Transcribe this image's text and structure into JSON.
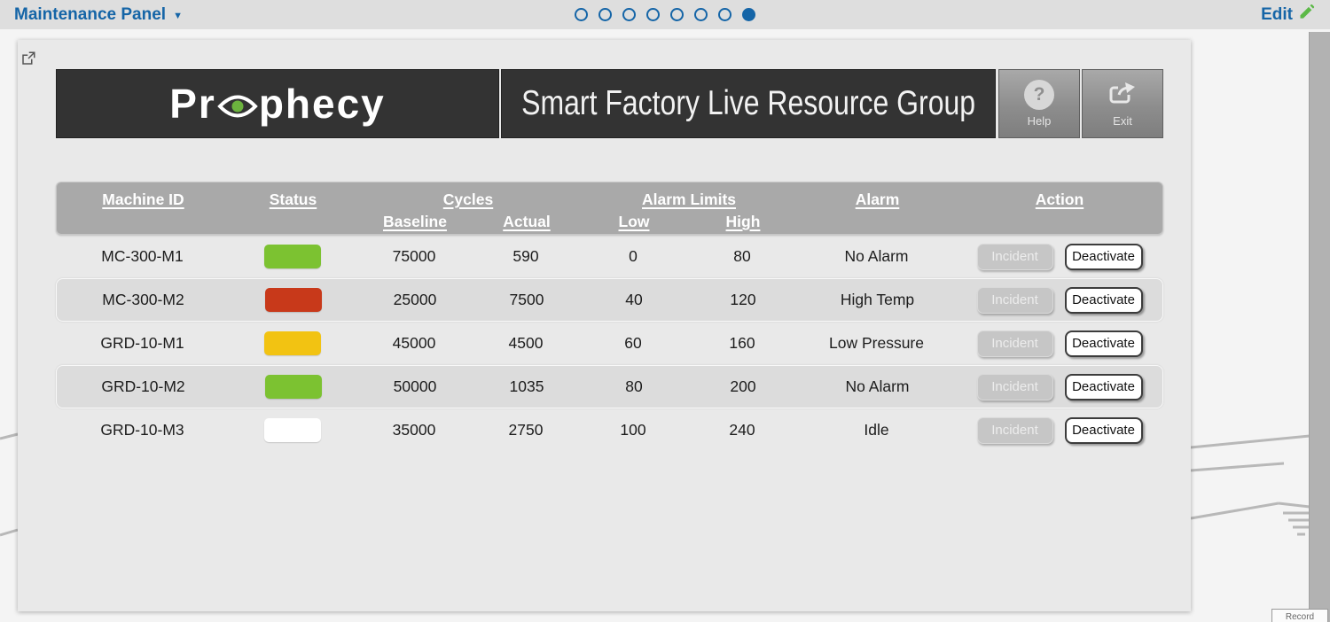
{
  "topbar": {
    "menu_label": "Maintenance Panel",
    "edit_label": "Edit",
    "page_dots": {
      "total": 8,
      "active_index": 7
    },
    "accent_color": "#1565a7",
    "pencil_color": "#5cb947"
  },
  "panel": {
    "logo_text": "Prophecy",
    "logo_text_left": "Pr",
    "logo_text_right": "phecy",
    "logo_eye_color": "#6cb33e",
    "title": "Smart Factory Live Resource Group",
    "help_label": "Help",
    "exit_label": "Exit"
  },
  "table": {
    "headers": {
      "machine_id": "Machine ID",
      "status": "Status",
      "cycles": "Cycles",
      "baseline": "Baseline",
      "actual": "Actual",
      "alarm_limits": "Alarm Limits",
      "low": "Low",
      "high": "High",
      "alarm": "Alarm",
      "action": "Action"
    },
    "action_buttons": {
      "incident": "Incident",
      "deactivate": "Deactivate"
    },
    "status_colors": {
      "running_green": "#7cc231",
      "alarm_red": "#c8391a",
      "warning_yellow": "#f2c312",
      "idle_white": "#ffffff"
    },
    "rows": [
      {
        "machine_id": "MC-300-M1",
        "status_color": "#7cc231",
        "baseline": "75000",
        "actual": "590",
        "low": "0",
        "high": "80",
        "alarm": "No Alarm"
      },
      {
        "machine_id": "MC-300-M2",
        "status_color": "#c8391a",
        "baseline": "25000",
        "actual": "7500",
        "low": "40",
        "high": "120",
        "alarm": "High Temp"
      },
      {
        "machine_id": "GRD-10-M1",
        "status_color": "#f2c312",
        "baseline": "45000",
        "actual": "4500",
        "low": "60",
        "high": "160",
        "alarm": "Low Pressure"
      },
      {
        "machine_id": "GRD-10-M2",
        "status_color": "#7cc231",
        "baseline": "50000",
        "actual": "1035",
        "low": "80",
        "high": "200",
        "alarm": "No Alarm"
      },
      {
        "machine_id": "GRD-10-M3",
        "status_color": "#ffffff",
        "baseline": "35000",
        "actual": "2750",
        "low": "100",
        "high": "240",
        "alarm": "Idle"
      }
    ]
  },
  "overlay": {
    "record_label": "Record"
  }
}
